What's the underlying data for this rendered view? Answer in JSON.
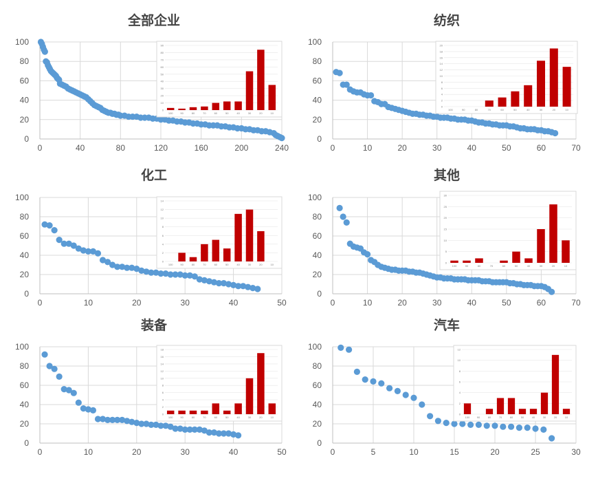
{
  "colors": {
    "scatter": "#5b9bd5",
    "bar": "#c00000",
    "grid": "#d9d9d9",
    "axis": "#bfbfbf",
    "text": "#595959"
  },
  "chart_data": [
    {
      "title": "全部企业",
      "type": "scatter",
      "xlim": [
        0,
        240
      ],
      "xticks": [
        0,
        40,
        80,
        120,
        160,
        200,
        240
      ],
      "ylim": [
        0,
        100
      ],
      "yticks": [
        0,
        20,
        40,
        60,
        80,
        100
      ],
      "x": [
        1,
        2,
        3,
        4,
        5,
        6,
        7,
        8,
        9,
        10,
        11,
        12,
        13,
        14,
        15,
        16,
        17,
        18,
        19,
        20,
        22,
        24,
        26,
        28,
        30,
        32,
        34,
        36,
        38,
        40,
        42,
        44,
        46,
        48,
        50,
        52,
        54,
        56,
        58,
        60,
        62,
        64,
        66,
        68,
        70,
        72,
        74,
        76,
        78,
        80,
        84,
        88,
        92,
        96,
        100,
        104,
        108,
        112,
        116,
        120,
        124,
        128,
        132,
        136,
        140,
        144,
        148,
        152,
        156,
        160,
        164,
        168,
        172,
        176,
        180,
        184,
        188,
        192,
        196,
        200,
        204,
        208,
        212,
        216,
        220,
        224,
        228,
        232,
        234,
        236,
        238,
        240
      ],
      "y": [
        100,
        98,
        95,
        92,
        90,
        80,
        79,
        76,
        74,
        72,
        70,
        69,
        68,
        67,
        66,
        65,
        63,
        62,
        61,
        57,
        56,
        55,
        54,
        52,
        51,
        50,
        49,
        48,
        47,
        46,
        45,
        44,
        43,
        41,
        39,
        37,
        35,
        34,
        33,
        32,
        30,
        29,
        28,
        27,
        27,
        26,
        26,
        25,
        25,
        24,
        24,
        23,
        23,
        23,
        22,
        22,
        22,
        21,
        21,
        20,
        20,
        19,
        19,
        18,
        18,
        17,
        17,
        16,
        16,
        15,
        15,
        14,
        14,
        14,
        13,
        13,
        12,
        12,
        11,
        11,
        10,
        10,
        9,
        9,
        8,
        8,
        7,
        6,
        4,
        3,
        2,
        1
      ],
      "inset": {
        "categories": [
          "100",
          "90",
          "80",
          "70",
          "60",
          "50",
          "40",
          "30",
          "20",
          "10"
        ],
        "values": [
          3,
          2,
          4,
          5,
          10,
          12,
          12,
          54,
          84,
          35
        ],
        "ylim": [
          0,
          90
        ],
        "yticks": [
          0,
          10,
          20,
          30,
          40,
          50,
          60,
          70,
          80,
          90
        ]
      }
    },
    {
      "title": "纺织",
      "type": "scatter",
      "xlim": [
        0,
        70
      ],
      "xticks": [
        0,
        10,
        20,
        30,
        40,
        50,
        60,
        70
      ],
      "ylim": [
        0,
        100
      ],
      "yticks": [
        0,
        20,
        40,
        60,
        80,
        100
      ],
      "x": [
        1,
        2,
        3,
        4,
        5,
        6,
        7,
        8,
        9,
        10,
        11,
        12,
        13,
        14,
        15,
        16,
        17,
        18,
        19,
        20,
        21,
        22,
        23,
        24,
        25,
        26,
        27,
        28,
        29,
        30,
        31,
        32,
        33,
        34,
        35,
        36,
        37,
        38,
        39,
        40,
        41,
        42,
        43,
        44,
        45,
        46,
        47,
        48,
        49,
        50,
        51,
        52,
        53,
        54,
        55,
        56,
        57,
        58,
        59,
        60,
        61,
        62,
        63,
        64
      ],
      "y": [
        69,
        68,
        56,
        56,
        51,
        49,
        48,
        48,
        46,
        45,
        45,
        39,
        38,
        36,
        36,
        33,
        32,
        31,
        30,
        29,
        28,
        27,
        26,
        26,
        25,
        25,
        24,
        24,
        23,
        23,
        22,
        22,
        22,
        21,
        21,
        20,
        20,
        20,
        19,
        19,
        18,
        17,
        17,
        16,
        16,
        15,
        15,
        14,
        14,
        14,
        13,
        13,
        12,
        11,
        11,
        10,
        10,
        10,
        9,
        9,
        8,
        8,
        7,
        6
      ],
      "inset": {
        "categories": [
          "100",
          "90",
          "80",
          "70",
          "60",
          "50",
          "40",
          "30",
          "20",
          "10"
        ],
        "values": [
          0,
          0,
          0,
          2,
          3,
          5,
          7,
          15,
          19,
          13
        ],
        "ylim": [
          0,
          20
        ],
        "yticks": [
          0,
          2,
          4,
          6,
          8,
          10,
          12,
          14,
          16,
          18,
          20
        ]
      }
    },
    {
      "title": "化工",
      "type": "scatter",
      "xlim": [
        0,
        50
      ],
      "xticks": [
        0,
        10,
        20,
        30,
        40,
        50
      ],
      "ylim": [
        0,
        100
      ],
      "yticks": [
        0,
        20,
        40,
        60,
        80,
        100
      ],
      "x": [
        1,
        2,
        3,
        4,
        5,
        6,
        7,
        8,
        9,
        10,
        11,
        12,
        13,
        14,
        15,
        16,
        17,
        18,
        19,
        20,
        21,
        22,
        23,
        24,
        25,
        26,
        27,
        28,
        29,
        30,
        31,
        32,
        33,
        34,
        35,
        36,
        37,
        38,
        39,
        40,
        41,
        42,
        43,
        44,
        45
      ],
      "y": [
        72,
        71,
        66,
        56,
        52,
        52,
        50,
        47,
        45,
        44,
        44,
        42,
        35,
        33,
        30,
        28,
        28,
        27,
        27,
        26,
        24,
        23,
        22,
        22,
        21,
        21,
        20,
        20,
        20,
        19,
        19,
        18,
        15,
        14,
        13,
        12,
        11,
        11,
        10,
        9,
        8,
        8,
        7,
        6,
        5
      ],
      "inset": {
        "categories": [
          "100",
          "90",
          "80",
          "70",
          "60",
          "50",
          "40",
          "30",
          "20",
          "10"
        ],
        "values": [
          0,
          2,
          1,
          4,
          5,
          3,
          11,
          12,
          7,
          0
        ],
        "ylim": [
          0,
          14
        ],
        "yticks": [
          0,
          2,
          4,
          6,
          8,
          10,
          12,
          14
        ]
      }
    },
    {
      "title": "其他",
      "type": "scatter",
      "xlim": [
        0,
        70
      ],
      "xticks": [
        0,
        10,
        20,
        30,
        40,
        50,
        60,
        70
      ],
      "ylim": [
        0,
        100
      ],
      "yticks": [
        0,
        20,
        40,
        60,
        80,
        100
      ],
      "x": [
        2,
        3,
        4,
        5,
        6,
        7,
        8,
        9,
        10,
        11,
        12,
        13,
        14,
        15,
        16,
        17,
        18,
        19,
        20,
        21,
        22,
        23,
        24,
        25,
        26,
        27,
        28,
        29,
        30,
        31,
        32,
        33,
        34,
        35,
        36,
        37,
        38,
        39,
        40,
        41,
        42,
        43,
        44,
        45,
        46,
        47,
        48,
        49,
        50,
        51,
        52,
        53,
        54,
        55,
        56,
        57,
        58,
        59,
        60,
        61,
        62,
        63
      ],
      "y": [
        89,
        80,
        74,
        52,
        49,
        48,
        47,
        43,
        41,
        35,
        33,
        30,
        28,
        27,
        26,
        25,
        25,
        24,
        24,
        24,
        23,
        23,
        22,
        22,
        21,
        20,
        19,
        18,
        17,
        17,
        16,
        16,
        16,
        15,
        15,
        15,
        15,
        14,
        14,
        14,
        14,
        13,
        13,
        13,
        12,
        12,
        12,
        12,
        12,
        11,
        11,
        10,
        10,
        9,
        9,
        9,
        8,
        8,
        8,
        7,
        5,
        2
      ],
      "inset": {
        "categories": [
          "100",
          "90",
          "80",
          "70",
          "60",
          "50",
          "40",
          "30",
          "20",
          "10"
        ],
        "values": [
          1,
          1,
          2,
          0,
          1,
          5,
          2,
          15,
          26,
          10
        ],
        "ylim": [
          0,
          30
        ],
        "yticks": [
          0,
          5,
          10,
          15,
          20,
          25,
          30
        ]
      }
    },
    {
      "title": "装备",
      "type": "scatter",
      "xlim": [
        0,
        50
      ],
      "xticks": [
        0,
        10,
        20,
        30,
        40,
        50
      ],
      "ylim": [
        0,
        100
      ],
      "yticks": [
        0,
        20,
        40,
        60,
        80,
        100
      ],
      "x": [
        1,
        2,
        3,
        4,
        5,
        6,
        7,
        8,
        9,
        10,
        11,
        12,
        13,
        14,
        15,
        16,
        17,
        18,
        19,
        20,
        21,
        22,
        23,
        24,
        25,
        26,
        27,
        28,
        29,
        30,
        31,
        32,
        33,
        34,
        35,
        36,
        37,
        38,
        39,
        40,
        41
      ],
      "y": [
        92,
        80,
        77,
        69,
        56,
        55,
        52,
        42,
        36,
        35,
        34,
        25,
        25,
        24,
        24,
        24,
        24,
        23,
        22,
        21,
        20,
        20,
        19,
        19,
        18,
        18,
        17,
        15,
        15,
        14,
        14,
        14,
        14,
        13,
        11,
        11,
        10,
        10,
        10,
        9,
        8
      ],
      "inset": {
        "categories": [
          "100",
          "90",
          "80",
          "70",
          "60",
          "50",
          "40",
          "30",
          "20",
          "10"
        ],
        "values": [
          1,
          1,
          1,
          1,
          3,
          1,
          3,
          10,
          17,
          3
        ],
        "ylim": [
          0,
          18
        ],
        "yticks": [
          0,
          2,
          4,
          6,
          8,
          10,
          12,
          14,
          16,
          18
        ]
      }
    },
    {
      "title": "汽车",
      "type": "scatter",
      "xlim": [
        0,
        30
      ],
      "xticks": [
        0,
        5,
        10,
        15,
        20,
        25,
        30
      ],
      "ylim": [
        0,
        100
      ],
      "yticks": [
        0,
        20,
        40,
        60,
        80,
        100
      ],
      "x": [
        1,
        2,
        3,
        4,
        5,
        6,
        7,
        8,
        9,
        10,
        11,
        12,
        13,
        14,
        15,
        16,
        17,
        18,
        19,
        20,
        21,
        22,
        23,
        24,
        25,
        26,
        27
      ],
      "y": [
        99,
        97,
        74,
        66,
        64,
        62,
        57,
        54,
        50,
        47,
        40,
        28,
        23,
        21,
        20,
        20,
        19,
        19,
        18,
        18,
        17,
        17,
        16,
        16,
        15,
        14,
        5
      ],
      "inset": {
        "categories": [
          "100",
          "90",
          "80",
          "70",
          "60",
          "50",
          "40",
          "30",
          "20",
          "10"
        ],
        "values": [
          2,
          0,
          1,
          3,
          3,
          1,
          1,
          4,
          11,
          1
        ],
        "ylim": [
          0,
          12
        ],
        "yticks": [
          0,
          2,
          4,
          6,
          8,
          10,
          12
        ]
      }
    }
  ]
}
